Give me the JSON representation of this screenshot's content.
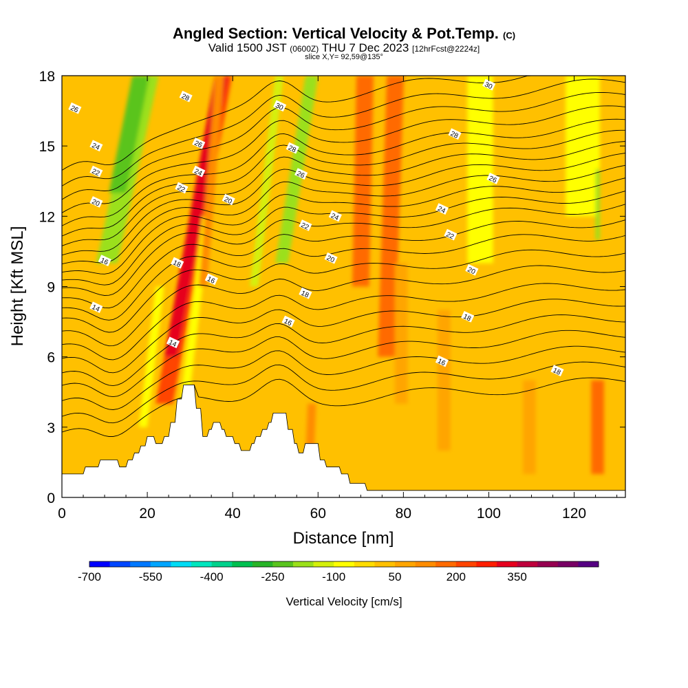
{
  "header": {
    "title": "Angled Section: Vertical Velocity & Pot.Temp.",
    "title_unit": "(C)",
    "subtitle_main": "Valid 1500 JST",
    "subtitle_utc": "(0600Z)",
    "subtitle_date": "THU 7 Dec 2023",
    "subtitle_fcst": "[12hrFcst@2224z]",
    "slice": "slice X,Y= 92,59@135°"
  },
  "chart_data": {
    "type": "heatmap",
    "title": "Angled Section: Vertical Velocity & Pot.Temp. (C)",
    "xlabel": "Distance [nm]",
    "ylabel": "Height [Kft MSL]",
    "xlim": [
      0,
      132
    ],
    "ylim": [
      0,
      18
    ],
    "xticks": [
      0,
      20,
      40,
      60,
      80,
      100,
      120
    ],
    "yticks": [
      0,
      3,
      6,
      9,
      12,
      15,
      18
    ],
    "background_value": 30,
    "velocity_bands": [
      {
        "x": 8,
        "width": 5,
        "tilt": 0.55,
        "value": -180,
        "y0": 10,
        "y1": 18
      },
      {
        "x": 11,
        "width": 4,
        "tilt": 0.5,
        "value": -230,
        "y0": 13,
        "y1": 18
      },
      {
        "x": 18,
        "width": 2,
        "tilt": 0.3,
        "value": -80,
        "y0": 3,
        "y1": 9
      },
      {
        "x": 22,
        "width": 4,
        "tilt": 0.45,
        "value": 230,
        "y0": 4,
        "y1": 18
      },
      {
        "x": 24,
        "width": 3,
        "tilt": 0.45,
        "value": 330,
        "y0": 6,
        "y1": 18
      },
      {
        "x": 27,
        "width": 2,
        "tilt": 0.3,
        "value": -100,
        "y0": 3,
        "y1": 12
      },
      {
        "x": 32,
        "width": 2,
        "tilt": 0.2,
        "value": 120,
        "y0": 9,
        "y1": 18
      },
      {
        "x": 44,
        "width": 2,
        "tilt": 0.3,
        "value": -110,
        "y0": 9,
        "y1": 18
      },
      {
        "x": 50,
        "width": 3,
        "tilt": 0.4,
        "value": -200,
        "y0": 10,
        "y1": 18
      },
      {
        "x": 57,
        "width": 2,
        "tilt": 0.1,
        "value": 130,
        "y0": 1.5,
        "y1": 4
      },
      {
        "x": 68,
        "width": 4,
        "tilt": 0.05,
        "value": 180,
        "y0": 9,
        "y1": 18
      },
      {
        "x": 74,
        "width": 4,
        "tilt": 0.08,
        "value": 160,
        "y0": 6,
        "y1": 18
      },
      {
        "x": 78,
        "width": 3,
        "tilt": 0.0,
        "value": 90,
        "y0": 4,
        "y1": 10
      },
      {
        "x": 95,
        "width": 6,
        "tilt": 0.0,
        "value": -60,
        "y0": 10,
        "y1": 18
      },
      {
        "x": 118,
        "width": 8,
        "tilt": 0.0,
        "value": -100,
        "y0": 12,
        "y1": 18
      },
      {
        "x": 125,
        "width": 1,
        "tilt": 0.0,
        "value": -200,
        "y0": 11,
        "y1": 14
      },
      {
        "x": 124,
        "width": 3,
        "tilt": 0.0,
        "value": 150,
        "y0": 1,
        "y1": 5
      },
      {
        "x": 108,
        "width": 3,
        "tilt": 0.0,
        "value": 70,
        "y0": 1,
        "y1": 5
      },
      {
        "x": 88,
        "width": 3,
        "tilt": 0.0,
        "value": 60,
        "y0": 2,
        "y1": 8
      }
    ],
    "terrain": [
      {
        "x": 0,
        "h": 1.0
      },
      {
        "x": 5,
        "h": 1.0
      },
      {
        "x": 5.5,
        "h": 1.3
      },
      {
        "x": 8.5,
        "h": 1.3
      },
      {
        "x": 9,
        "h": 1.6
      },
      {
        "x": 13,
        "h": 1.6
      },
      {
        "x": 13.5,
        "h": 1.3
      },
      {
        "x": 15,
        "h": 1.3
      },
      {
        "x": 15.5,
        "h": 1.6
      },
      {
        "x": 16.5,
        "h": 1.6
      },
      {
        "x": 17,
        "h": 1.9
      },
      {
        "x": 18,
        "h": 1.9
      },
      {
        "x": 18.5,
        "h": 2.2
      },
      {
        "x": 19.5,
        "h": 2.2
      },
      {
        "x": 20,
        "h": 2.6
      },
      {
        "x": 21.5,
        "h": 2.6
      },
      {
        "x": 22,
        "h": 2.3
      },
      {
        "x": 23.5,
        "h": 2.3
      },
      {
        "x": 24,
        "h": 2.6
      },
      {
        "x": 25,
        "h": 2.6
      },
      {
        "x": 25.5,
        "h": 3.2
      },
      {
        "x": 26.5,
        "h": 3.2
      },
      {
        "x": 27,
        "h": 4.2
      },
      {
        "x": 28,
        "h": 4.2
      },
      {
        "x": 28.5,
        "h": 4.8
      },
      {
        "x": 31,
        "h": 4.8
      },
      {
        "x": 31.5,
        "h": 3.8
      },
      {
        "x": 32.5,
        "h": 3.8
      },
      {
        "x": 33,
        "h": 2.6
      },
      {
        "x": 34,
        "h": 2.6
      },
      {
        "x": 34.5,
        "h": 2.9
      },
      {
        "x": 35,
        "h": 2.9
      },
      {
        "x": 35.5,
        "h": 3.2
      },
      {
        "x": 37,
        "h": 3.2
      },
      {
        "x": 37.5,
        "h": 2.9
      },
      {
        "x": 38,
        "h": 2.9
      },
      {
        "x": 38.5,
        "h": 2.6
      },
      {
        "x": 40,
        "h": 2.6
      },
      {
        "x": 40.5,
        "h": 2.3
      },
      {
        "x": 41.5,
        "h": 2.3
      },
      {
        "x": 42,
        "h": 2.0
      },
      {
        "x": 44,
        "h": 2.0
      },
      {
        "x": 44.5,
        "h": 2.3
      },
      {
        "x": 45,
        "h": 2.3
      },
      {
        "x": 45.5,
        "h": 2.6
      },
      {
        "x": 46.5,
        "h": 2.6
      },
      {
        "x": 47,
        "h": 2.9
      },
      {
        "x": 48,
        "h": 2.9
      },
      {
        "x": 48.5,
        "h": 3.2
      },
      {
        "x": 49,
        "h": 3.2
      },
      {
        "x": 49.5,
        "h": 3.6
      },
      {
        "x": 52.5,
        "h": 3.6
      },
      {
        "x": 53,
        "h": 2.9
      },
      {
        "x": 54,
        "h": 2.9
      },
      {
        "x": 54.5,
        "h": 2.3
      },
      {
        "x": 55,
        "h": 2.3
      },
      {
        "x": 55.5,
        "h": 1.9
      },
      {
        "x": 56.5,
        "h": 1.9
      },
      {
        "x": 57,
        "h": 2.3
      },
      {
        "x": 60,
        "h": 2.3
      },
      {
        "x": 60.5,
        "h": 1.6
      },
      {
        "x": 61.5,
        "h": 1.6
      },
      {
        "x": 62,
        "h": 1.3
      },
      {
        "x": 65,
        "h": 1.3
      },
      {
        "x": 65.5,
        "h": 1.0
      },
      {
        "x": 67,
        "h": 1.0
      },
      {
        "x": 67.5,
        "h": 0.6
      },
      {
        "x": 71,
        "h": 0.6
      },
      {
        "x": 71.5,
        "h": 0.3
      },
      {
        "x": 132,
        "h": 0.3
      }
    ],
    "isotherms": [
      {
        "base": 3.8,
        "amp": 1.0
      },
      {
        "base": 4.5,
        "amp": 1.1
      },
      {
        "base": 5.2,
        "amp": 1.2
      },
      {
        "base": 5.9,
        "amp": 1.3
      },
      {
        "base": 6.6,
        "amp": 1.5
      },
      {
        "base": 7.3,
        "amp": 1.6
      },
      {
        "base": 8.0,
        "amp": 1.7
      },
      {
        "base": 8.8,
        "amp": 1.9
      },
      {
        "base": 9.5,
        "amp": 2.0
      },
      {
        "base": 10.2,
        "amp": 2.2
      },
      {
        "base": 10.8,
        "amp": 2.3
      },
      {
        "base": 11.4,
        "amp": 2.4
      },
      {
        "base": 11.9,
        "amp": 2.5
      },
      {
        "base": 12.4,
        "amp": 2.6
      },
      {
        "base": 12.9,
        "amp": 2.7
      },
      {
        "base": 13.4,
        "amp": 2.8
      },
      {
        "base": 13.9,
        "amp": 2.9
      },
      {
        "base": 14.4,
        "amp": 3.0
      },
      {
        "base": 14.9,
        "amp": 3.1
      },
      {
        "base": 15.5,
        "amp": 3.2
      },
      {
        "base": 16.1,
        "amp": 3.3
      },
      {
        "base": 16.7,
        "amp": 3.4
      },
      {
        "base": 17.4,
        "amp": 3.5
      }
    ],
    "contour_labels": [
      {
        "text": "26",
        "x": 3,
        "y": 16.6
      },
      {
        "text": "24",
        "x": 8,
        "y": 15.0
      },
      {
        "text": "22",
        "x": 8,
        "y": 13.9
      },
      {
        "text": "20",
        "x": 8,
        "y": 12.6
      },
      {
        "text": "16",
        "x": 10,
        "y": 10.1
      },
      {
        "text": "14",
        "x": 8,
        "y": 8.1
      },
      {
        "text": "28",
        "x": 29,
        "y": 17.1
      },
      {
        "text": "26",
        "x": 32,
        "y": 15.1
      },
      {
        "text": "24",
        "x": 32,
        "y": 13.9
      },
      {
        "text": "22",
        "x": 28,
        "y": 13.2
      },
      {
        "text": "20",
        "x": 39,
        "y": 12.7
      },
      {
        "text": "18",
        "x": 27,
        "y": 10.0
      },
      {
        "text": "16",
        "x": 35,
        "y": 9.3
      },
      {
        "text": "14",
        "x": 26,
        "y": 6.6
      },
      {
        "text": "30",
        "x": 51,
        "y": 16.7
      },
      {
        "text": "28",
        "x": 54,
        "y": 14.9
      },
      {
        "text": "26",
        "x": 56,
        "y": 13.8
      },
      {
        "text": "22",
        "x": 57,
        "y": 11.6
      },
      {
        "text": "24",
        "x": 64,
        "y": 12.0
      },
      {
        "text": "20",
        "x": 63,
        "y": 10.2
      },
      {
        "text": "18",
        "x": 57,
        "y": 8.7
      },
      {
        "text": "16",
        "x": 53,
        "y": 7.5
      },
      {
        "text": "30",
        "x": 100,
        "y": 17.6
      },
      {
        "text": "28",
        "x": 92,
        "y": 15.5
      },
      {
        "text": "26",
        "x": 101,
        "y": 13.6
      },
      {
        "text": "24",
        "x": 89,
        "y": 12.3
      },
      {
        "text": "22",
        "x": 91,
        "y": 11.2
      },
      {
        "text": "20",
        "x": 96,
        "y": 9.7
      },
      {
        "text": "18",
        "x": 95,
        "y": 7.7
      },
      {
        "text": "16",
        "x": 89,
        "y": 5.8
      },
      {
        "text": "18",
        "x": 116,
        "y": 5.4
      }
    ],
    "colorbar": {
      "title": "Vertical Velocity [cm/s]",
      "min": -700,
      "step": 50,
      "tick_labels": [
        -700,
        -550,
        -400,
        -250,
        -100,
        50,
        200,
        350
      ],
      "colors": [
        "#0000ff",
        "#0046ff",
        "#0078ff",
        "#00a5ff",
        "#00dcf5",
        "#00e6be",
        "#00d28c",
        "#00c050",
        "#28b428",
        "#5ac41e",
        "#9be01a",
        "#d4f00a",
        "#ffff00",
        "#ffdd00",
        "#ffc000",
        "#ffa500",
        "#ff8c00",
        "#ff6a00",
        "#ff4400",
        "#ff1e00",
        "#e6001e",
        "#be003c",
        "#960050",
        "#780064",
        "#550082"
      ]
    }
  }
}
